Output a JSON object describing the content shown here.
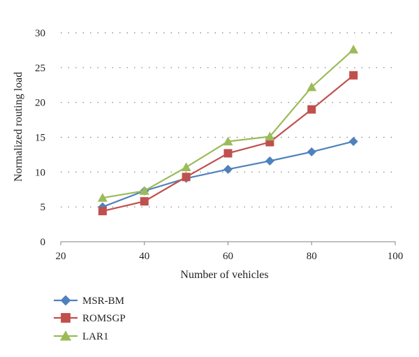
{
  "chart_data": {
    "type": "line",
    "xlabel": "Number of vehicles",
    "ylabel": "Normalized routing load",
    "xlim": [
      20,
      100
    ],
    "ylim": [
      0,
      30
    ],
    "xticks": [
      20,
      40,
      60,
      80,
      100
    ],
    "yticks": [
      0,
      5,
      10,
      15,
      20,
      25,
      30
    ],
    "grid": "horizontal dotted",
    "legend_position": "bottom-left",
    "x": [
      30,
      40,
      50,
      60,
      70,
      80,
      90
    ],
    "series": [
      {
        "name": "MSR-BM",
        "color": "#4f81bd",
        "marker": "diamond",
        "values": [
          5.0,
          7.3,
          9.1,
          10.4,
          11.6,
          12.9,
          14.4
        ]
      },
      {
        "name": "ROMSGP",
        "color": "#c0504d",
        "marker": "square",
        "values": [
          4.4,
          5.8,
          9.3,
          12.7,
          14.3,
          19.0,
          23.9
        ]
      },
      {
        "name": "LAR1",
        "color": "#9bbb59",
        "marker": "triangle",
        "values": [
          6.3,
          7.3,
          10.7,
          14.4,
          15.1,
          22.2,
          27.6
        ]
      }
    ]
  }
}
